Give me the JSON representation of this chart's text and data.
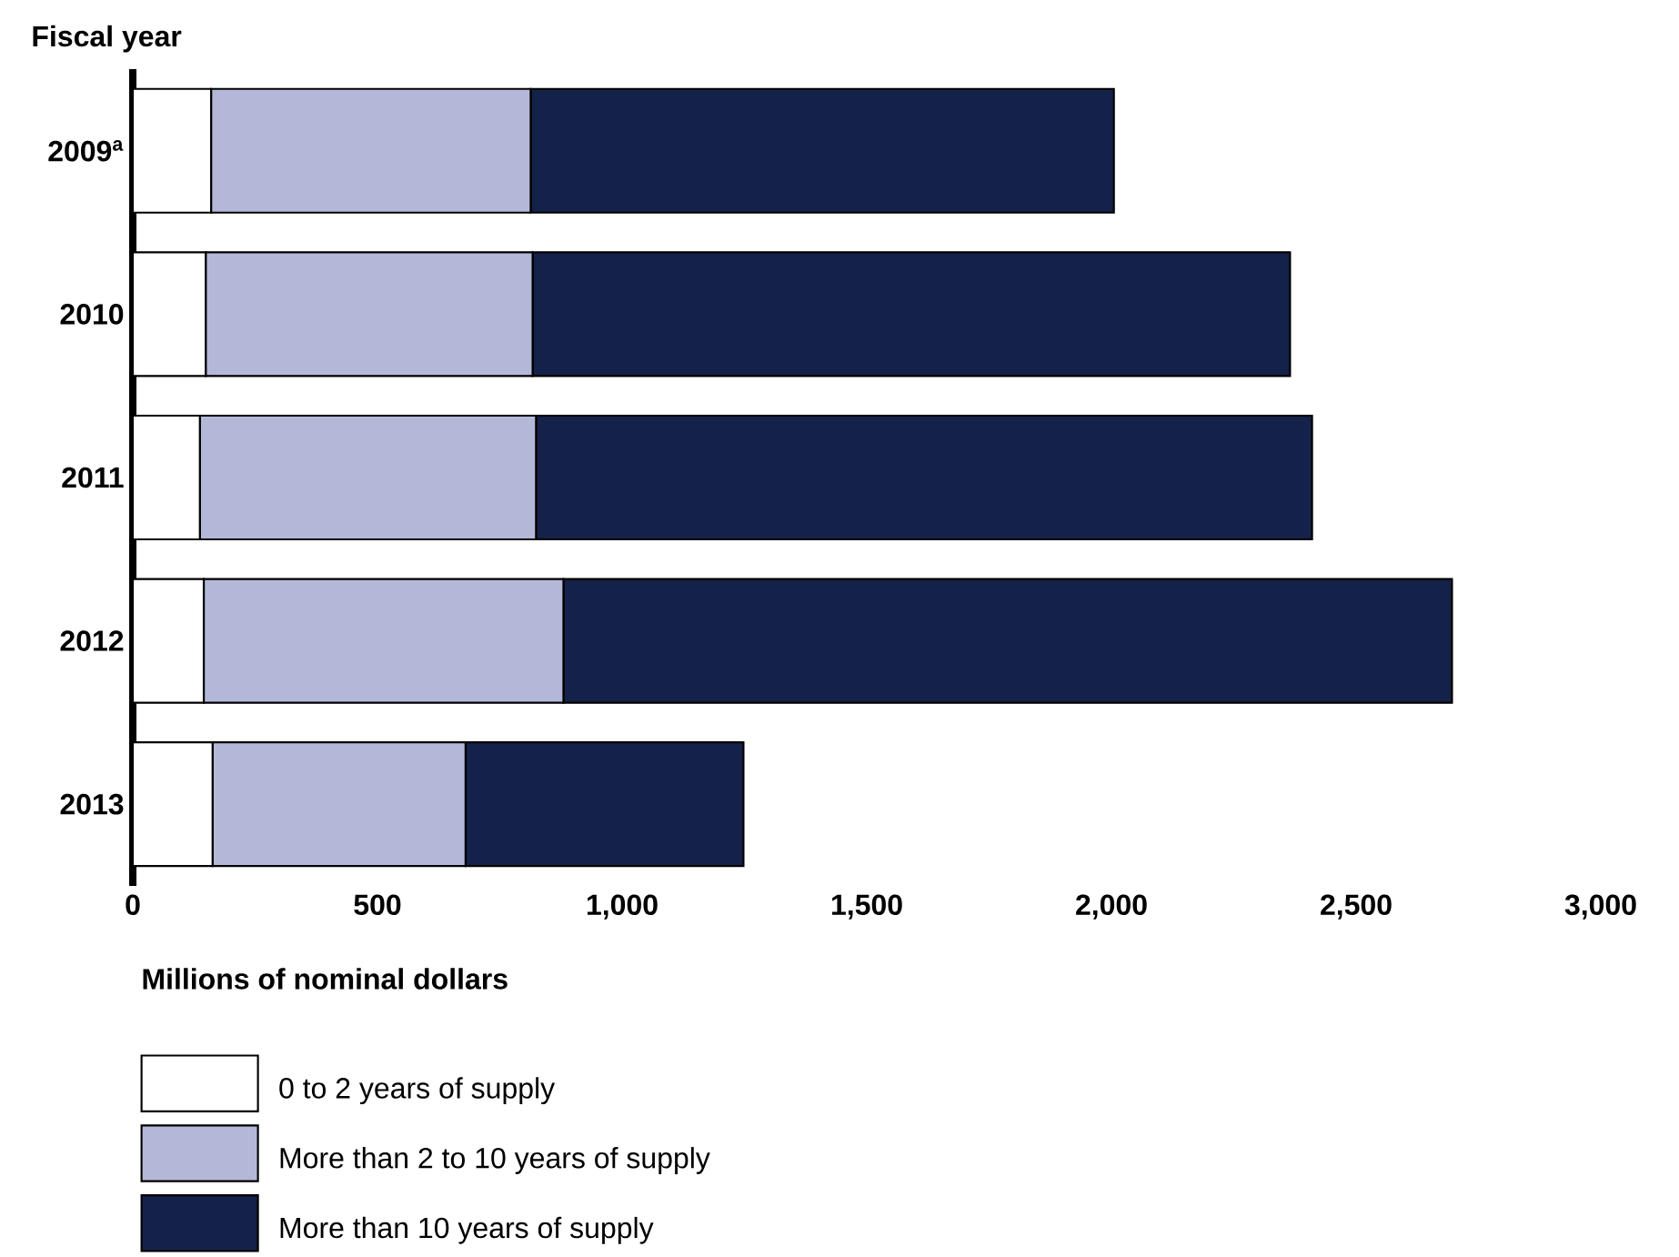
{
  "chart_data": {
    "type": "bar",
    "orientation": "horizontal",
    "stacked": true,
    "ylabel": "Fiscal year",
    "xlabel": "Millions of nominal dollars",
    "categories": [
      "2009$^{a}$",
      "2010",
      "2011",
      "2012",
      "2013"
    ],
    "series": [
      {
        "name": "0 to 2 years of supply",
        "color": "#ffffff",
        "values": [
          160,
          149,
          137,
          145,
          163
        ]
      },
      {
        "name": "More than 2 to 10 years of supply",
        "color": "#b4b8d8",
        "values": [
          653,
          668,
          687,
          735,
          517
        ]
      },
      {
        "name": "More than 10 years of supply",
        "color": "#14224a",
        "values": [
          1192,
          1548,
          1586,
          1816,
          568
        ]
      }
    ],
    "xlim": [
      0,
      3000
    ],
    "xticks": [
      0,
      {
        "value": 500,
        "label": "500"
      },
      {
        "value": 1000,
        "label": "1,000"
      },
      {
        "value": 1500,
        "label": "1,500"
      },
      {
        "value": 2000,
        "label": "2,000"
      },
      {
        "value": 2500,
        "label": "2,500"
      },
      {
        "value": 3000,
        "label": "3,000"
      }
    ],
    "legend": "bottom"
  }
}
